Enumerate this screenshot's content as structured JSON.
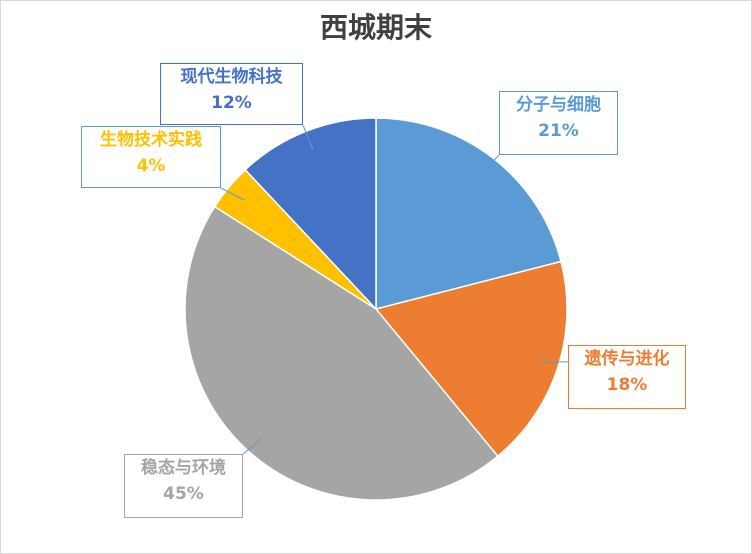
{
  "chart_data": {
    "type": "pie",
    "title": "西城期末",
    "slices": [
      {
        "label": "分子与细胞",
        "percent": "21%",
        "value": 21,
        "color": "#5b9bd5"
      },
      {
        "label": "遗传与进化",
        "percent": "18%",
        "value": 18,
        "color": "#ed7d31"
      },
      {
        "label": "稳态与环境",
        "percent": "45%",
        "value": 45,
        "color": "#a5a5a5"
      },
      {
        "label": "生物技术实践",
        "percent": "4%",
        "value": 4,
        "color": "#ffc000"
      },
      {
        "label": "现代生物科技",
        "percent": "12%",
        "value": 12,
        "color": "#4472c4"
      }
    ],
    "legend": "none",
    "data_labels": "callout"
  }
}
